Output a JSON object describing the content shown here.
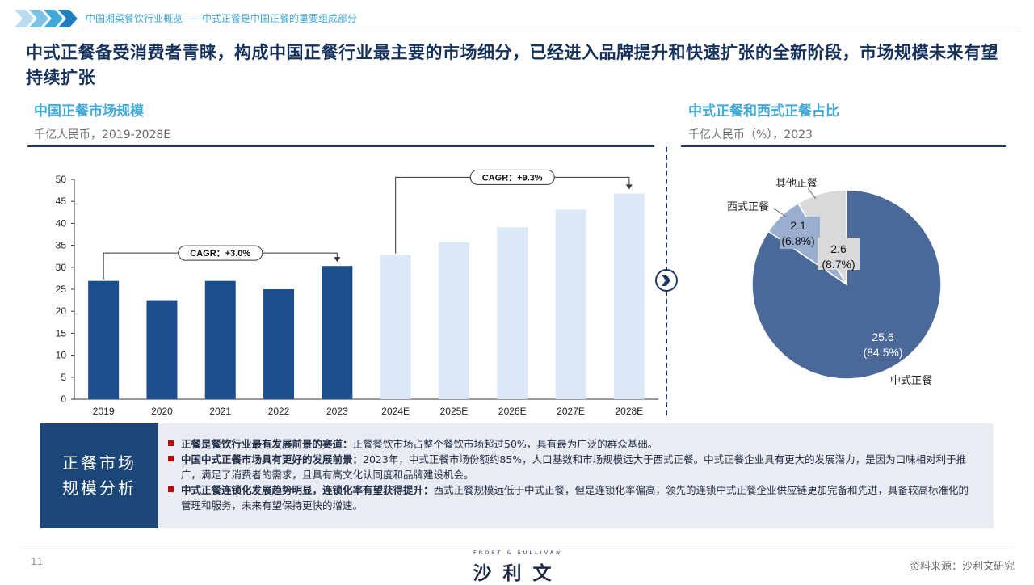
{
  "header": {
    "breadcrumb": "中国湘菜餐饮行业概览——中式正餐是中国正餐的重要组成部分",
    "title": "中式正餐备受消费者青睐，构成中国正餐行业最主要的市场细分，已经进入品牌提升和快速扩张的全新阶段，市场规模未来有望持续扩张"
  },
  "left_section": {
    "title": "中国正餐市场规模",
    "subtitle": "千亿人民币，2019-2028E"
  },
  "right_section": {
    "title": "中式正餐和西式正餐占比",
    "subtitle": "千亿人民币（%），2023"
  },
  "colors": {
    "actual_bar": "#1b4f8c",
    "forecast_bar": "#dbe8f7",
    "pie_chinese": "#4a6898",
    "pie_western": "#9aaed0",
    "pie_other": "#d9d9d9",
    "accent": "#3fa9d8"
  },
  "chart_data": [
    {
      "type": "bar",
      "categories": [
        "2019",
        "2020",
        "2021",
        "2022",
        "2023",
        "2024E",
        "2025E",
        "2026E",
        "2027E",
        "2028E"
      ],
      "values": [
        26.9,
        22.5,
        26.9,
        25.0,
        30.3,
        32.8,
        35.7,
        39.1,
        43.1,
        46.8
      ],
      "forecast_from_index": 5,
      "ylim": [
        0,
        50
      ],
      "yticks": [
        0,
        5,
        10,
        15,
        20,
        25,
        30,
        35,
        40,
        45,
        50
      ],
      "annotations": [
        {
          "text": "CAGR：+3.0%",
          "from": "2019",
          "to": "2023"
        },
        {
          "text": "CAGR：+9.3%",
          "from": "2024E",
          "to": "2028E"
        }
      ],
      "grid": false
    },
    {
      "type": "pie",
      "slices": [
        {
          "label": "中式正餐",
          "value": 25.6,
          "percent": "(84.5%)",
          "value_label": "25.6"
        },
        {
          "label": "西式正餐",
          "value": 2.1,
          "percent": "(6.8%)",
          "value_label": "2.1"
        },
        {
          "label": "其他正餐",
          "value": 2.6,
          "percent": "(8.7%)",
          "value_label": "2.6"
        }
      ]
    }
  ],
  "summary": {
    "label": "正餐市场规模分析",
    "items": [
      {
        "bold": "正餐是餐饮行业最有发展前景的赛道：",
        "text": "正餐餐饮市场占整个餐饮市场超过50%，具有最为广泛的群众基础。"
      },
      {
        "bold": "中国中式正餐市场具有更好的发展前景：",
        "text": "2023年，中式正餐市场份额约85%，人口基数和市场规模远大于西式正餐。中式正餐企业具有更大的发展潜力，是因为口味相对利于推广，满足了消费者的需求，且具有高文化认同度和品牌建设机会。"
      },
      {
        "bold": "中式正餐连锁化发展趋势明显，连锁化率有望获得提升：",
        "text": "西式正餐规模远低于中式正餐，但是连锁化率偏高，领先的连锁中式正餐企业供应链更加完备和先进，具备较高标准化的管理和服务，未来有望保持更快的增速。"
      }
    ]
  },
  "footer": {
    "page_number": "11",
    "logo_top": "FROST & SULLIVAN",
    "logo": "沙利文",
    "source": "资料来源：沙利文研究"
  }
}
